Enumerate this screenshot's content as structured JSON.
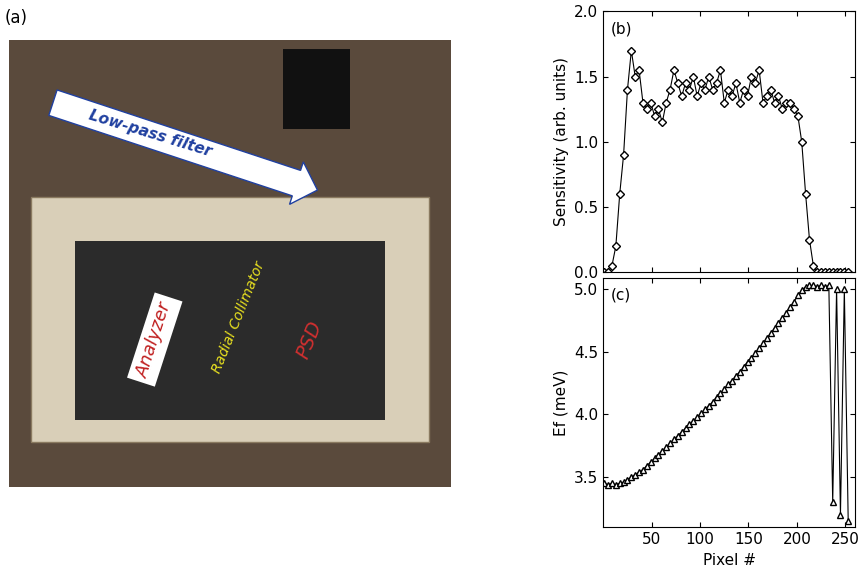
{
  "photo": {
    "label": "(a)",
    "annotations": [
      "Low-pass filter",
      "Analyzer",
      "Radial Collimator",
      "PSD"
    ]
  },
  "chart_data": [
    {
      "type": "line",
      "marker": "diamond",
      "color": "#000000",
      "annotations": [
        "(b)"
      ],
      "y_label": "Sensitivity (arb. units)",
      "tick_labels": "y",
      "xlim": [
        0,
        260
      ],
      "xticks": [
        50,
        100,
        150,
        200,
        250
      ],
      "ylim": [
        0.0,
        2.0
      ],
      "yticks": [
        0.0,
        0.5,
        1.0,
        1.5,
        2.0
      ],
      "x": [
        1,
        5,
        9,
        13,
        17,
        21,
        25,
        29,
        33,
        37,
        41,
        45,
        49,
        53,
        57,
        61,
        65,
        69,
        73,
        77,
        81,
        85,
        89,
        93,
        97,
        101,
        105,
        109,
        113,
        117,
        121,
        125,
        129,
        133,
        137,
        141,
        145,
        149,
        153,
        157,
        161,
        165,
        169,
        173,
        177,
        181,
        185,
        189,
        193,
        197,
        201,
        205,
        209,
        213,
        217,
        221,
        225,
        229,
        233,
        237,
        241,
        245,
        249,
        253
      ],
      "values": [
        0.0,
        0.0,
        0.05,
        0.2,
        0.6,
        0.9,
        1.4,
        1.7,
        1.5,
        1.55,
        1.3,
        1.25,
        1.3,
        1.2,
        1.25,
        1.15,
        1.3,
        1.4,
        1.55,
        1.45,
        1.35,
        1.45,
        1.4,
        1.5,
        1.35,
        1.45,
        1.4,
        1.5,
        1.4,
        1.45,
        1.55,
        1.3,
        1.4,
        1.35,
        1.45,
        1.3,
        1.4,
        1.35,
        1.5,
        1.45,
        1.55,
        1.3,
        1.35,
        1.4,
        1.3,
        1.35,
        1.25,
        1.3,
        1.3,
        1.25,
        1.2,
        1.0,
        0.6,
        0.25,
        0.05,
        0.0,
        0.0,
        0.0,
        0.0,
        0.0,
        0.0,
        0.0,
        0.0,
        0.0
      ]
    },
    {
      "type": "line",
      "marker": "triangle",
      "color": "#000000",
      "annotations": [
        "(c)"
      ],
      "x_label": "Pixel #",
      "y_label": "Ef (meV)",
      "xlim": [
        0,
        260
      ],
      "xticks": [
        50,
        100,
        150,
        200,
        250
      ],
      "ylim": [
        3.1,
        5.09
      ],
      "yticks": [
        3.5,
        4.0,
        4.5,
        5.0
      ],
      "x": [
        1,
        5,
        9,
        13,
        17,
        21,
        25,
        29,
        33,
        37,
        41,
        45,
        49,
        53,
        57,
        61,
        65,
        69,
        73,
        77,
        81,
        85,
        89,
        93,
        97,
        101,
        105,
        109,
        113,
        117,
        121,
        125,
        129,
        133,
        137,
        141,
        145,
        149,
        153,
        157,
        161,
        165,
        169,
        173,
        177,
        181,
        185,
        189,
        193,
        197,
        201,
        205,
        209,
        213,
        217,
        221,
        225,
        229,
        233,
        237,
        241,
        245,
        249,
        253
      ],
      "values": [
        3.45,
        3.44,
        3.45,
        3.44,
        3.45,
        3.46,
        3.48,
        3.5,
        3.52,
        3.54,
        3.56,
        3.59,
        3.62,
        3.65,
        3.68,
        3.71,
        3.74,
        3.77,
        3.8,
        3.83,
        3.86,
        3.89,
        3.92,
        3.95,
        3.98,
        4.01,
        4.04,
        4.07,
        4.1,
        4.14,
        4.17,
        4.2,
        4.24,
        4.27,
        4.31,
        4.34,
        4.38,
        4.42,
        4.45,
        4.49,
        4.53,
        4.57,
        4.61,
        4.65,
        4.69,
        4.73,
        4.77,
        4.81,
        4.86,
        4.9,
        4.95,
        4.99,
        5.02,
        5.03,
        5.03,
        5.02,
        5.03,
        5.02,
        5.03,
        3.3,
        5.0,
        3.2,
        5.0,
        3.15
      ]
    }
  ]
}
